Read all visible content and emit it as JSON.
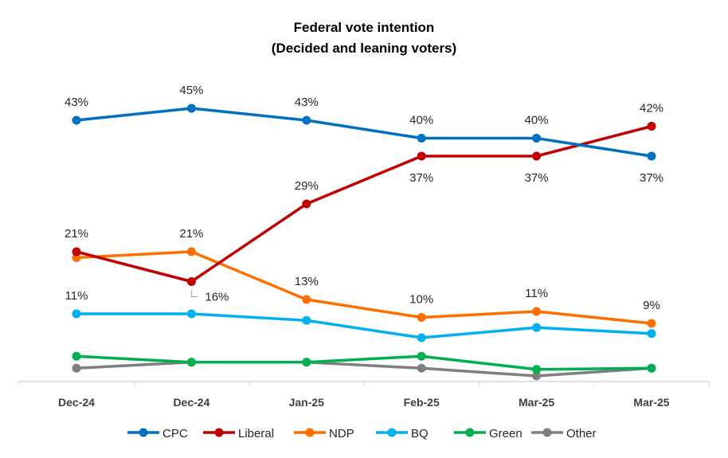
{
  "chart_data": {
    "type": "line",
    "title": [
      "Federal vote intention",
      "(Decided and leaning voters)"
    ],
    "categories": [
      "Dec-24",
      "Dec-24",
      "Jan-25",
      "Feb-25",
      "Mar-25",
      "Mar-25"
    ],
    "series": [
      {
        "name": "CPC",
        "color": "#0070C0",
        "values": [
          43,
          45,
          43,
          40,
          40,
          37
        ],
        "labels": [
          "43%",
          "45%",
          "43%",
          "40%",
          "40%",
          "37%"
        ]
      },
      {
        "name": "Liberal",
        "color": "#C00000",
        "values": [
          21,
          16,
          29,
          37,
          37,
          42
        ],
        "labels": [
          "21%",
          "16%",
          "29%",
          "37%",
          "37%",
          "42%"
        ]
      },
      {
        "name": "NDP",
        "color": "#FF6F00",
        "values": [
          20,
          21,
          13,
          10,
          11,
          9
        ],
        "labels": [
          "",
          "21%",
          "13%",
          "10%",
          "11%",
          "9%"
        ]
      },
      {
        "name": "BQ",
        "color": "#00B0F0",
        "values": [
          10.6,
          10.6,
          9.5,
          6.6,
          8.3,
          7.3
        ],
        "labels": [
          "11%",
          "",
          "",
          "",
          "",
          ""
        ]
      },
      {
        "name": "Green",
        "color": "#00B050",
        "values": [
          3.5,
          2.5,
          2.5,
          3.5,
          1.3,
          1.5
        ],
        "labels": [
          "",
          "",
          "",
          "",
          "",
          ""
        ]
      },
      {
        "name": "Other",
        "color": "#7F7F7F",
        "values": [
          1.5,
          2.5,
          2.5,
          1.5,
          0.2,
          1.5
        ],
        "labels": [
          "",
          "",
          "",
          "",
          "",
          ""
        ]
      }
    ],
    "ylim": [
      0,
      50
    ],
    "grid": false,
    "legend": "bottom"
  }
}
